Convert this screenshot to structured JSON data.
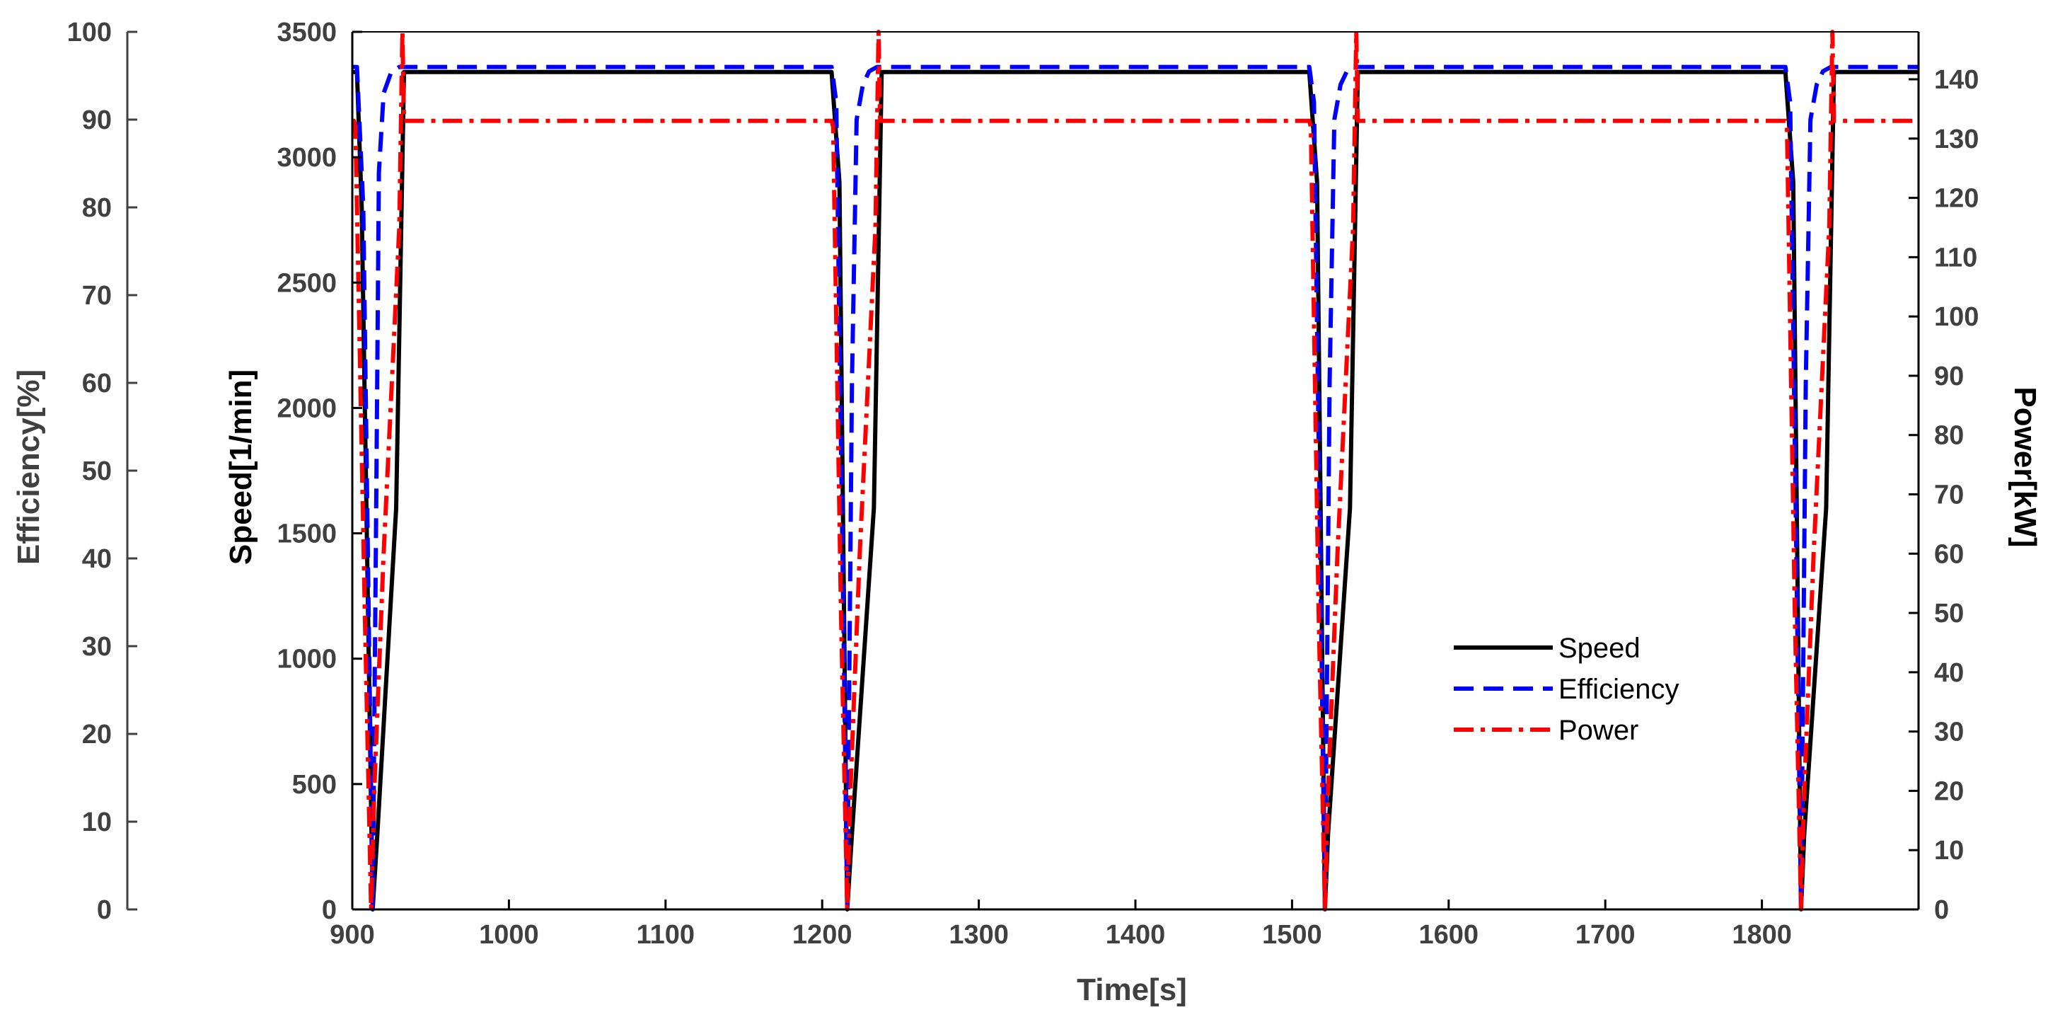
{
  "chart_data": {
    "type": "line",
    "xlabel": "Time[s]",
    "ylabel_left_inner": "Speed[1/min]",
    "ylabel_left_outer": "Efficiency[%]",
    "ylabel_right": "Power[kW]",
    "xlim": [
      900,
      1900
    ],
    "ylim_speed": [
      0,
      3500
    ],
    "ylim_efficiency": [
      0,
      100
    ],
    "ylim_power": [
      0,
      148
    ],
    "x_ticks": [
      "900",
      "1000",
      "1100",
      "1200",
      "1300",
      "1400",
      "1500",
      "1600",
      "1700",
      "1800"
    ],
    "speed_ticks": [
      "0",
      "500",
      "1000",
      "1500",
      "2000",
      "2500",
      "3000",
      "3500"
    ],
    "efficiency_ticks": [
      "0",
      "10",
      "20",
      "30",
      "40",
      "50",
      "60",
      "70",
      "80",
      "90",
      "100"
    ],
    "power_ticks": [
      "0",
      "10",
      "20",
      "30",
      "40",
      "50",
      "60",
      "70",
      "80",
      "90",
      "100",
      "110",
      "120",
      "130",
      "140"
    ],
    "legend": {
      "position": "center-right",
      "entries": [
        "Speed",
        "Efficiency",
        "Power"
      ]
    },
    "colors": {
      "speed": "#000000",
      "efficiency": "#0000ff",
      "power": "#ff0000",
      "axis_left": "#404040"
    },
    "series": [
      {
        "name": "Speed",
        "axis": "speed",
        "style": "solid",
        "x": [
          900,
          903,
          906,
          911,
          913,
          916,
          928,
          933,
          1206,
          1211,
          1216,
          1219,
          1233,
          1238,
          1511,
          1516,
          1521,
          1523,
          1537,
          1542,
          1815,
          1820,
          1825,
          1827,
          1841,
          1846,
          1900
        ],
        "y": [
          3340,
          3340,
          2800,
          800,
          0,
          300,
          1600,
          3340,
          3340,
          2900,
          0,
          300,
          1600,
          3340,
          3340,
          2900,
          0,
          300,
          1600,
          3340,
          3340,
          2900,
          0,
          300,
          1600,
          3340,
          3340
        ]
      },
      {
        "name": "Efficiency",
        "axis": "efficiency",
        "style": "dash",
        "x": [
          900,
          903,
          907,
          910,
          913,
          915,
          917,
          920,
          925,
          930,
          1206,
          1209,
          1213,
          1216,
          1219,
          1222,
          1226,
          1230,
          1235,
          1511,
          1514,
          1518,
          1521,
          1524,
          1527,
          1531,
          1535,
          1540,
          1815,
          1818,
          1822,
          1825,
          1828,
          1831,
          1835,
          1839,
          1844,
          1900
        ],
        "y": [
          96,
          96,
          80,
          40,
          0,
          40,
          84,
          93,
          95.5,
          96,
          96,
          92,
          40,
          0,
          60,
          90,
          94,
          95.5,
          96,
          96,
          92,
          40,
          0,
          60,
          90,
          94,
          95.5,
          96,
          96,
          92,
          40,
          0,
          60,
          90,
          94,
          95.5,
          96,
          96
        ]
      },
      {
        "name": "Power",
        "axis": "power",
        "style": "dashdot",
        "x": [
          900,
          901,
          902,
          908,
          912,
          914,
          920,
          930,
          932,
          933,
          934,
          1206,
          1207,
          1212,
          1216,
          1218,
          1224,
          1234,
          1236,
          1237,
          1238,
          1511,
          1512,
          1517,
          1521,
          1523,
          1529,
          1539,
          1541,
          1542,
          1543,
          1815,
          1816,
          1821,
          1825,
          1827,
          1833,
          1843,
          1845,
          1846,
          1847,
          1900
        ],
        "y": [
          133,
          133,
          132,
          50,
          0,
          20,
          60,
          115,
          148,
          133,
          133,
          133,
          132,
          50,
          0,
          20,
          60,
          115,
          148,
          133,
          133,
          133,
          132,
          50,
          0,
          20,
          60,
          115,
          148,
          133,
          133,
          133,
          132,
          50,
          0,
          20,
          60,
          115,
          148,
          133,
          133,
          133
        ]
      }
    ]
  }
}
